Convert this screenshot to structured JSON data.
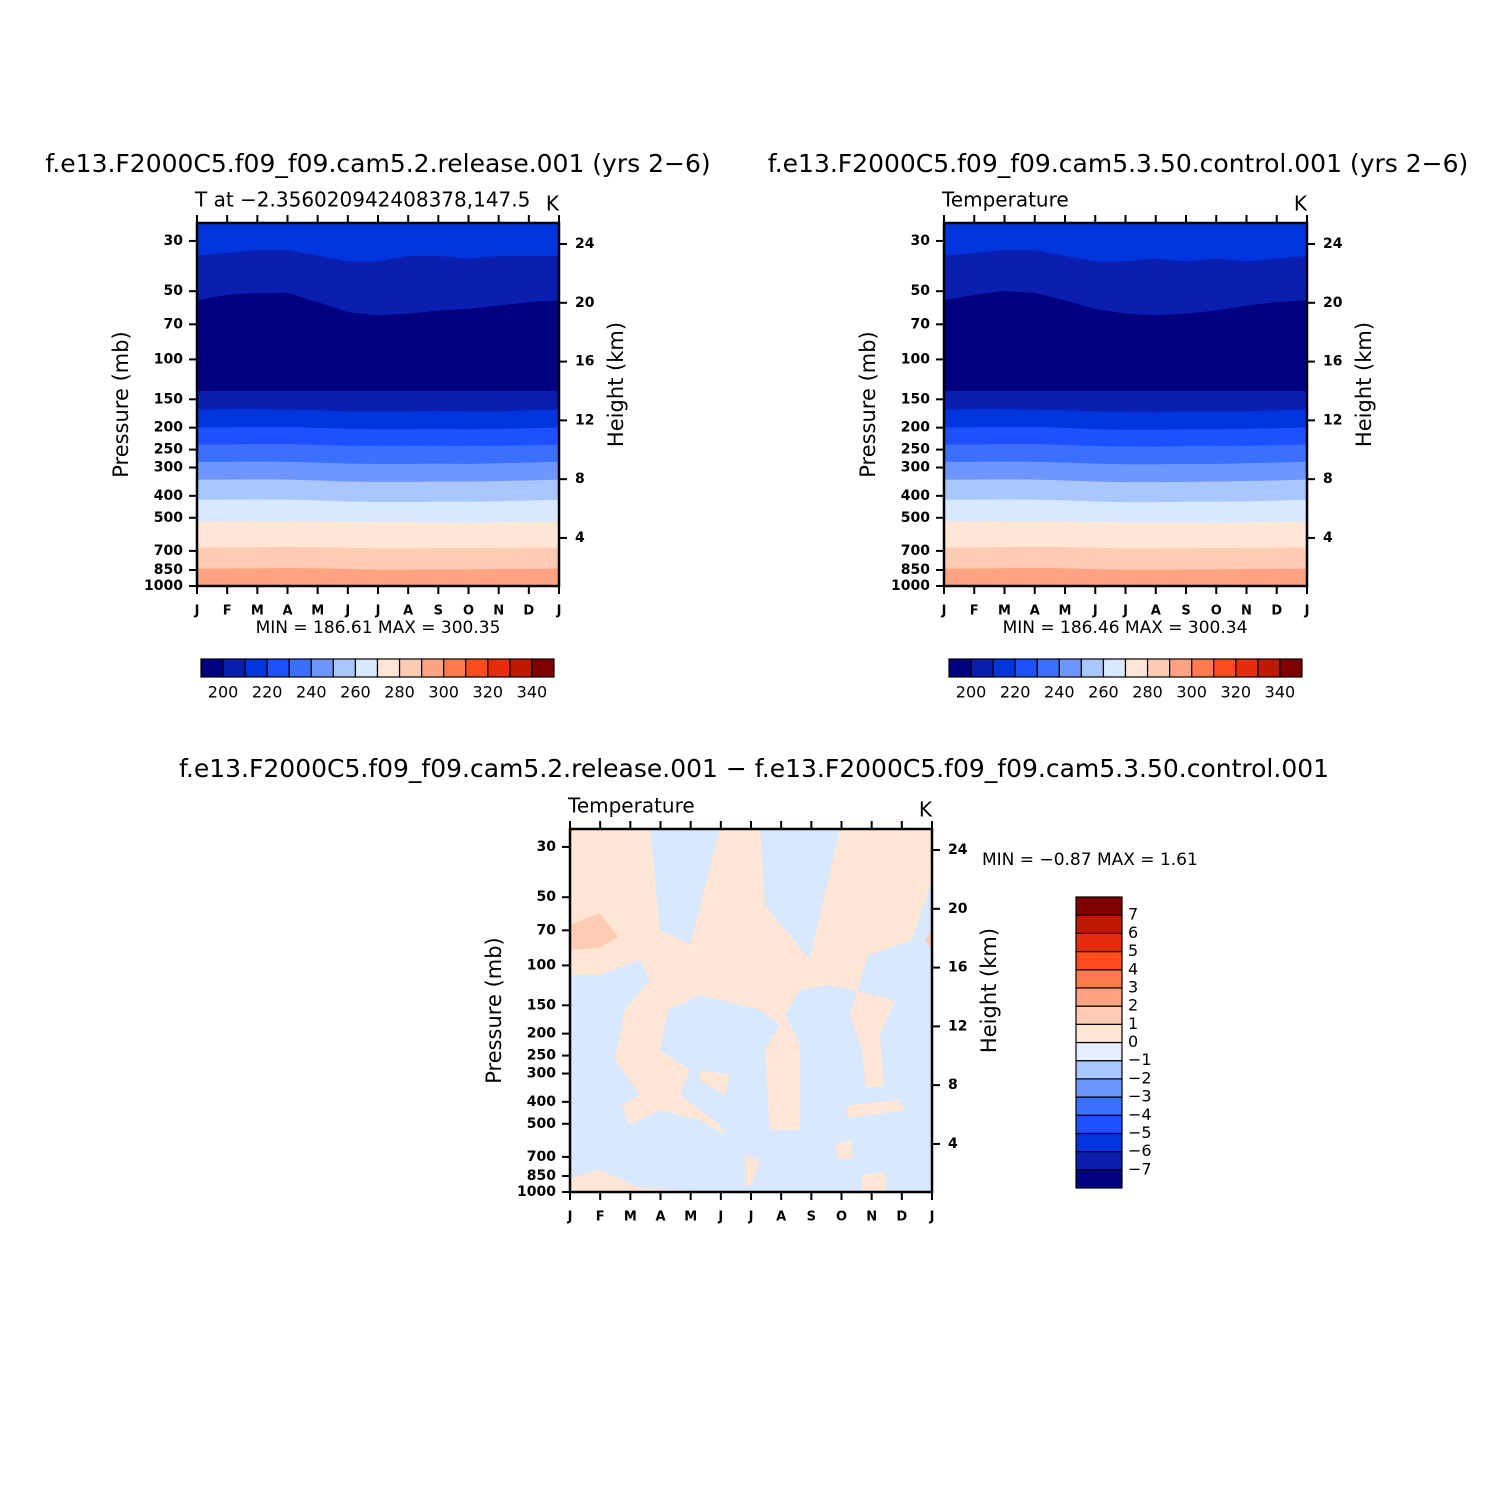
{
  "chart_data": [
    {
      "type": "contour",
      "title": "f.e13.F2000C5.f09_f09.cam5.2.release.001  (yrs 2−6)",
      "left_string": "T at −2.356020942408378,147.5",
      "right_string": "K",
      "stats": "MIN =  186.61  MAX =  300.35",
      "categories": [
        "J",
        "F",
        "M",
        "A",
        "M",
        "J",
        "J",
        "A",
        "S",
        "O",
        "N",
        "D",
        "J"
      ],
      "y_label": "Pressure  (mb)",
      "y2_label": "Height  (km)",
      "ylim": [
        1000,
        25
      ],
      "ylog": true,
      "yticks": [
        30,
        50,
        70,
        100,
        150,
        200,
        250,
        300,
        400,
        500,
        700,
        850,
        1000
      ],
      "y2lim": [
        0.73,
        25.43
      ],
      "y2ticks": [
        4,
        8,
        12,
        16,
        20,
        24
      ],
      "color": "#0035dd",
      "contours": [
        {
          "level": 210,
          "color": "#0a1fb0",
          "values": [
            35,
            34,
            33,
            33,
            35,
            37,
            37,
            35,
            35,
            36,
            35,
            35,
            35
          ]
        },
        {
          "level": 200,
          "color": "#000080",
          "values": [
            55,
            52,
            51,
            51,
            56,
            62,
            64,
            63,
            61,
            60,
            58,
            56,
            55
          ]
        },
        {
          "level": 200,
          "color": "#0a1fb0",
          "values": [
            138,
            138,
            138,
            138,
            138,
            138,
            138,
            138,
            138,
            138,
            138,
            138,
            138
          ]
        },
        {
          "level": 210,
          "color": "#0035dd",
          "values": [
            167,
            166,
            166,
            167,
            168,
            170,
            170,
            170,
            169,
            170,
            170,
            168,
            167
          ]
        },
        {
          "level": 220,
          "color": "#1e50ff",
          "values": [
            200,
            200,
            199,
            199,
            201,
            203,
            204,
            204,
            203,
            204,
            203,
            202,
            200
          ]
        },
        {
          "level": 230,
          "color": "#3b70ff",
          "values": [
            238,
            238,
            237,
            237,
            239,
            241,
            242,
            242,
            241,
            242,
            241,
            240,
            238
          ]
        },
        {
          "level": 240,
          "color": "#6e96ff",
          "values": [
            284,
            284,
            283,
            284,
            286,
            289,
            290,
            290,
            289,
            290,
            288,
            286,
            284
          ]
        },
        {
          "level": 250,
          "color": "#a9c6ff",
          "values": [
            340,
            340,
            339,
            340,
            343,
            347,
            348,
            348,
            347,
            347,
            345,
            343,
            340
          ]
        },
        {
          "level": 260,
          "color": "#d7e8ff",
          "values": [
            417,
            417,
            416,
            417,
            420,
            425,
            427,
            427,
            426,
            426,
            424,
            421,
            417
          ]
        },
        {
          "level": 270,
          "color": "#ffe6d5",
          "values": [
            521,
            520,
            518,
            518,
            520,
            523,
            525,
            525,
            526,
            527,
            526,
            524,
            521
          ]
        },
        {
          "level": 280,
          "color": "#ffcbb3",
          "values": [
            679,
            678,
            676,
            674,
            676,
            680,
            684,
            684,
            682,
            682,
            681,
            680,
            679
          ]
        },
        {
          "level": 290,
          "color": "#ffa382",
          "values": [
            841,
            840,
            838,
            836,
            838,
            844,
            850,
            850,
            848,
            846,
            844,
            842,
            841
          ]
        }
      ],
      "levels": [
        200,
        210,
        220,
        230,
        240,
        250,
        260,
        270,
        280,
        290,
        300,
        310,
        320,
        330,
        340
      ],
      "colorbar_colors": [
        "#000080",
        "#0a1fb0",
        "#0035dd",
        "#1e50ff",
        "#3b70ff",
        "#6e96ff",
        "#a9c6ff",
        "#d7e8ff",
        "#ffe6d5",
        "#ffcbb3",
        "#ffa382",
        "#ff7a4f",
        "#ff4c1e",
        "#e52c0c",
        "#bd1a00",
        "#800000"
      ],
      "colorbar_ticks": [
        200,
        220,
        240,
        260,
        280,
        300,
        320,
        340
      ],
      "colorbar_orientation": "horizontal"
    },
    {
      "type": "contour",
      "title": "f.e13.F2000C5.f09_f09.cam5.3.50.control.001  (yrs 2−6)",
      "left_string": "Temperature",
      "right_string": "K",
      "stats": "MIN =  186.46  MAX =  300.34",
      "categories": [
        "J",
        "F",
        "M",
        "A",
        "M",
        "J",
        "J",
        "A",
        "S",
        "O",
        "N",
        "D",
        "J"
      ],
      "y_label": "Pressure  (mb)",
      "y2_label": "Height  (km)",
      "ylim": [
        1000,
        25
      ],
      "ylog": true,
      "yticks": [
        30,
        50,
        70,
        100,
        150,
        200,
        250,
        300,
        400,
        500,
        700,
        850,
        1000
      ],
      "y2lim": [
        0.73,
        25.43
      ],
      "y2ticks": [
        4,
        8,
        12,
        16,
        20,
        24
      ],
      "color": "#0035dd",
      "contours": [
        {
          "level": 210,
          "color": "#0a1fb0",
          "values": [
            35,
            34,
            33,
            33,
            35,
            37,
            37,
            36,
            37,
            36,
            37,
            36,
            35
          ]
        },
        {
          "level": 200,
          "color": "#000080",
          "values": [
            55,
            52,
            50,
            51,
            55,
            60,
            63,
            64,
            63,
            61,
            58,
            56,
            55
          ]
        },
        {
          "level": 200,
          "color": "#0a1fb0",
          "values": [
            138,
            138,
            138,
            138,
            138,
            138,
            138,
            138,
            138,
            138,
            138,
            138,
            138
          ]
        },
        {
          "level": 210,
          "color": "#0035dd",
          "values": [
            167,
            166,
            166,
            167,
            168,
            170,
            171,
            171,
            170,
            170,
            170,
            168,
            167
          ]
        },
        {
          "level": 220,
          "color": "#1e50ff",
          "values": [
            200,
            200,
            199,
            199,
            201,
            204,
            205,
            205,
            204,
            204,
            203,
            202,
            200
          ]
        },
        {
          "level": 230,
          "color": "#3b70ff",
          "values": [
            238,
            238,
            237,
            237,
            239,
            242,
            243,
            243,
            242,
            242,
            241,
            240,
            238
          ]
        },
        {
          "level": 240,
          "color": "#6e96ff",
          "values": [
            284,
            284,
            283,
            284,
            286,
            289,
            291,
            291,
            290,
            290,
            288,
            286,
            284
          ]
        },
        {
          "level": 250,
          "color": "#a9c6ff",
          "values": [
            340,
            340,
            339,
            340,
            343,
            347,
            349,
            349,
            348,
            347,
            345,
            343,
            340
          ]
        },
        {
          "level": 260,
          "color": "#d7e8ff",
          "values": [
            417,
            417,
            416,
            417,
            420,
            425,
            428,
            428,
            426,
            426,
            424,
            421,
            417
          ]
        },
        {
          "level": 270,
          "color": "#ffe6d5",
          "values": [
            521,
            520,
            518,
            518,
            520,
            524,
            526,
            526,
            526,
            527,
            526,
            524,
            521
          ]
        },
        {
          "level": 280,
          "color": "#ffcbb3",
          "values": [
            679,
            678,
            675,
            673,
            675,
            680,
            684,
            684,
            683,
            682,
            681,
            680,
            679
          ]
        },
        {
          "level": 290,
          "color": "#ffa382",
          "values": [
            841,
            840,
            837,
            835,
            838,
            845,
            851,
            851,
            849,
            846,
            844,
            842,
            841
          ]
        }
      ],
      "levels": [
        200,
        210,
        220,
        230,
        240,
        250,
        260,
        270,
        280,
        290,
        300,
        310,
        320,
        330,
        340
      ],
      "colorbar_colors": [
        "#000080",
        "#0a1fb0",
        "#0035dd",
        "#1e50ff",
        "#3b70ff",
        "#6e96ff",
        "#a9c6ff",
        "#d7e8ff",
        "#ffe6d5",
        "#ffcbb3",
        "#ffa382",
        "#ff7a4f",
        "#ff4c1e",
        "#e52c0c",
        "#bd1a00",
        "#800000"
      ],
      "colorbar_ticks": [
        200,
        220,
        240,
        260,
        280,
        300,
        320,
        340
      ],
      "colorbar_orientation": "horizontal"
    },
    {
      "type": "contour",
      "title": "f.e13.F2000C5.f09_f09.cam5.2.release.001  −  f.e13.F2000C5.f09_f09.cam5.3.50.control.001",
      "left_string": "Temperature",
      "right_string": "K",
      "stats": "MIN =   −0.87  MAX =     1.61",
      "categories": [
        "J",
        "F",
        "M",
        "A",
        "M",
        "J",
        "J",
        "A",
        "S",
        "O",
        "N",
        "D",
        "J"
      ],
      "xlim": [
        0,
        12
      ],
      "y_label": "Pressure  (mb)",
      "y2_label": "Height  (km)",
      "ylim": [
        1000,
        25
      ],
      "ylog": true,
      "yticks": [
        30,
        50,
        70,
        100,
        150,
        200,
        250,
        300,
        400,
        500,
        700,
        850,
        1000
      ],
      "y2lim": [
        0.73,
        25.43
      ],
      "y2ticks": [
        4,
        8,
        12,
        16,
        20,
        24
      ],
      "color": "#d7e8ff",
      "polygons": [
        {
          "color": "#ffe6d5",
          "points": [
            [
              0,
              25
            ],
            [
              2.65,
              25
            ],
            [
              2.98,
              69.7
            ],
            [
              3.98,
              81.2
            ],
            [
              4.97,
              25
            ],
            [
              6.3,
              25
            ],
            [
              6.46,
              54.1
            ],
            [
              7.95,
              94.6
            ],
            [
              8.95,
              25
            ],
            [
              12,
              25
            ],
            [
              12,
              41.9
            ],
            [
              11.34,
              77.2
            ],
            [
              9.88,
              89.9
            ],
            [
              9.28,
              165
            ],
            [
              9.68,
              236
            ],
            [
              9.81,
              347
            ],
            [
              10.41,
              340
            ],
            [
              10.27,
              203
            ],
            [
              10.77,
              142
            ],
            [
              8.62,
              122
            ],
            [
              7.62,
              128
            ],
            [
              7.13,
              165
            ],
            [
              7.62,
              224
            ],
            [
              7.62,
              532
            ],
            [
              6.63,
              532
            ],
            [
              6.46,
              236
            ],
            [
              6.96,
              183
            ],
            [
              6.3,
              157
            ],
            [
              4.31,
              135
            ],
            [
              3.25,
              157
            ],
            [
              2.98,
              236
            ],
            [
              3.98,
              289
            ],
            [
              3.65,
              373
            ],
            [
              4.97,
              506
            ],
            [
              5.14,
              560
            ],
            [
              4.31,
              481
            ],
            [
              2.98,
              435
            ],
            [
              1.99,
              506
            ],
            [
              1.72,
              413
            ],
            [
              2.32,
              373
            ],
            [
              1.49,
              261
            ],
            [
              1.82,
              157
            ],
            [
              2.65,
              116
            ],
            [
              2.32,
              94.6
            ],
            [
              0.99,
              110
            ],
            [
              0,
              110
            ]
          ]
        },
        {
          "color": "#ffe6d5",
          "points": [
            [
              4.31,
              289
            ],
            [
              5.3,
              304
            ],
            [
              5.14,
              373
            ],
            [
              4.31,
              320
            ]
          ]
        },
        {
          "color": "#ffe6d5",
          "points": [
            [
              9.28,
              413
            ],
            [
              10.94,
              393
            ],
            [
              11.1,
              435
            ],
            [
              9.28,
              471
            ],
            [
              9.11,
              443
            ]
          ]
        },
        {
          "color": "#ffe6d5",
          "points": [
            [
              8.78,
              620
            ],
            [
              9.35,
              589
            ],
            [
              9.35,
              708
            ],
            [
              8.88,
              722
            ]
          ]
        },
        {
          "color": "#ffe6d5",
          "points": [
            [
              0,
              867
            ],
            [
              0.99,
              800
            ],
            [
              2.32,
              960
            ],
            [
              4.97,
              1000
            ],
            [
              0,
              1000
            ]
          ]
        },
        {
          "color": "#ffe6d5",
          "points": [
            [
              9.68,
              841
            ],
            [
              10.44,
              816
            ],
            [
              10.47,
              980
            ],
            [
              9.68,
              980
            ]
          ]
        },
        {
          "color": "#ffe6d5",
          "points": [
            [
              5.8,
              687
            ],
            [
              6.3,
              722
            ],
            [
              6.03,
              931
            ],
            [
              5.8,
              931
            ]
          ]
        },
        {
          "color": "#ffcbb3",
          "points": [
            [
              0,
              66.3
            ],
            [
              0.99,
              58.6
            ],
            [
              1.59,
              74.8
            ],
            [
              0.99,
              83.7
            ],
            [
              0,
              85.4
            ]
          ]
        },
        {
          "color": "#ffcbb3",
          "points": [
            [
              11.77,
              77.2
            ],
            [
              12,
              69.7
            ],
            [
              12,
              85.4
            ]
          ]
        }
      ],
      "levels": [
        -7,
        -6,
        -5,
        -4,
        -3,
        -2,
        -1,
        0,
        1,
        2,
        3,
        4,
        5,
        6,
        7
      ],
      "colorbar_colors": [
        "#000080",
        "#0a1fb0",
        "#0035dd",
        "#1e50ff",
        "#3b70ff",
        "#6e96ff",
        "#a9c6ff",
        "#e4eeff",
        "#ffe6d5",
        "#ffcbb3",
        "#ffa382",
        "#ff7a4f",
        "#ff4c1e",
        "#e52c0c",
        "#bd1a00",
        "#800000"
      ],
      "colorbar_ticks": [
        {
          "value": -7,
          "label": "−7"
        },
        {
          "value": -6,
          "label": "−6"
        },
        {
          "value": -5,
          "label": "−5"
        },
        {
          "value": -4,
          "label": "−4"
        },
        {
          "value": -3,
          "label": "−3"
        },
        {
          "value": -2,
          "label": "−2"
        },
        {
          "value": -1,
          "label": "−1"
        },
        0,
        1,
        2,
        3,
        4,
        5,
        6,
        7
      ],
      "colorbar_orientation": "vertical"
    }
  ]
}
